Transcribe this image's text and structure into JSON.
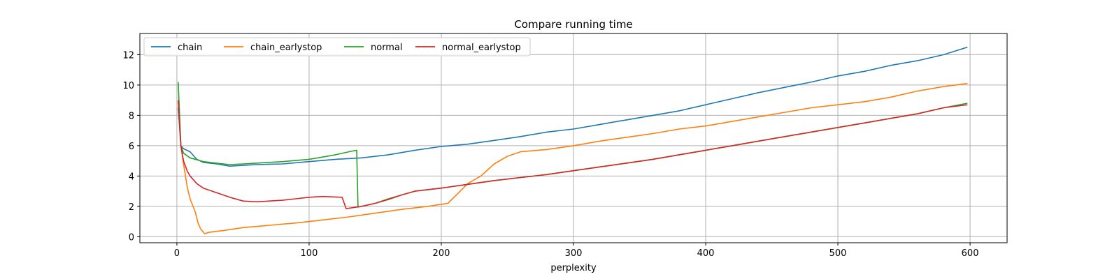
{
  "chart_data": {
    "type": "line",
    "title": "Compare running time",
    "xlabel": "perplexity",
    "ylabel": "",
    "xlim": [
      -28,
      628
    ],
    "ylim": [
      -0.4,
      13.4
    ],
    "xticks": [
      0,
      100,
      200,
      300,
      400,
      500,
      600
    ],
    "yticks": [
      0,
      2,
      4,
      6,
      8,
      10,
      12
    ],
    "grid": true,
    "legend": "top-left",
    "legend_layout": "horizontal",
    "series": [
      {
        "name": "chain",
        "color": "#1f77b4",
        "points": [
          [
            1,
            8.5
          ],
          [
            3,
            6.0
          ],
          [
            5,
            5.8
          ],
          [
            10,
            5.6
          ],
          [
            15,
            5.1
          ],
          [
            20,
            4.9
          ],
          [
            30,
            4.8
          ],
          [
            40,
            4.65
          ],
          [
            50,
            4.7
          ],
          [
            60,
            4.75
          ],
          [
            80,
            4.8
          ],
          [
            100,
            4.95
          ],
          [
            120,
            5.1
          ],
          [
            140,
            5.2
          ],
          [
            160,
            5.4
          ],
          [
            180,
            5.7
          ],
          [
            200,
            5.95
          ],
          [
            220,
            6.1
          ],
          [
            240,
            6.35
          ],
          [
            260,
            6.6
          ],
          [
            280,
            6.9
          ],
          [
            300,
            7.1
          ],
          [
            320,
            7.4
          ],
          [
            340,
            7.7
          ],
          [
            360,
            8.0
          ],
          [
            380,
            8.3
          ],
          [
            400,
            8.7
          ],
          [
            420,
            9.1
          ],
          [
            440,
            9.5
          ],
          [
            460,
            9.85
          ],
          [
            480,
            10.2
          ],
          [
            500,
            10.6
          ],
          [
            520,
            10.9
          ],
          [
            540,
            11.3
          ],
          [
            560,
            11.6
          ],
          [
            580,
            12.0
          ],
          [
            598,
            12.5
          ]
        ]
      },
      {
        "name": "chain_earlystop",
        "color": "#ff7f0e",
        "points": [
          [
            1,
            9.0
          ],
          [
            3,
            6.0
          ],
          [
            5,
            4.8
          ],
          [
            8,
            3.2
          ],
          [
            10,
            2.5
          ],
          [
            14,
            1.6
          ],
          [
            16,
            0.9
          ],
          [
            18,
            0.5
          ],
          [
            21,
            0.2
          ],
          [
            25,
            0.3
          ],
          [
            35,
            0.4
          ],
          [
            50,
            0.6
          ],
          [
            70,
            0.75
          ],
          [
            90,
            0.9
          ],
          [
            110,
            1.1
          ],
          [
            130,
            1.3
          ],
          [
            150,
            1.55
          ],
          [
            170,
            1.8
          ],
          [
            190,
            2.0
          ],
          [
            205,
            2.2
          ],
          [
            212,
            2.8
          ],
          [
            220,
            3.5
          ],
          [
            230,
            4.0
          ],
          [
            240,
            4.8
          ],
          [
            250,
            5.3
          ],
          [
            260,
            5.6
          ],
          [
            280,
            5.75
          ],
          [
            300,
            6.0
          ],
          [
            320,
            6.3
          ],
          [
            340,
            6.55
          ],
          [
            360,
            6.8
          ],
          [
            380,
            7.1
          ],
          [
            400,
            7.3
          ],
          [
            420,
            7.6
          ],
          [
            440,
            7.9
          ],
          [
            460,
            8.2
          ],
          [
            480,
            8.5
          ],
          [
            500,
            8.7
          ],
          [
            520,
            8.9
          ],
          [
            540,
            9.2
          ],
          [
            560,
            9.6
          ],
          [
            580,
            9.9
          ],
          [
            598,
            10.1
          ]
        ]
      },
      {
        "name": "normal",
        "color": "#2ca02c",
        "points": [
          [
            1,
            10.2
          ],
          [
            3,
            6.0
          ],
          [
            5,
            5.5
          ],
          [
            10,
            5.2
          ],
          [
            20,
            4.95
          ],
          [
            30,
            4.85
          ],
          [
            40,
            4.75
          ],
          [
            50,
            4.8
          ],
          [
            60,
            4.85
          ],
          [
            80,
            4.95
          ],
          [
            100,
            5.1
          ],
          [
            110,
            5.25
          ],
          [
            120,
            5.4
          ],
          [
            130,
            5.6
          ],
          [
            136,
            5.7
          ],
          [
            137,
            1.95
          ],
          [
            150,
            2.2
          ],
          [
            160,
            2.5
          ],
          [
            170,
            2.75
          ],
          [
            180,
            3.0
          ],
          [
            200,
            3.2
          ],
          [
            220,
            3.45
          ],
          [
            240,
            3.7
          ],
          [
            260,
            3.9
          ],
          [
            280,
            4.1
          ],
          [
            300,
            4.35
          ],
          [
            320,
            4.6
          ],
          [
            340,
            4.85
          ],
          [
            360,
            5.1
          ],
          [
            380,
            5.4
          ],
          [
            400,
            5.7
          ],
          [
            420,
            6.0
          ],
          [
            440,
            6.3
          ],
          [
            460,
            6.6
          ],
          [
            480,
            6.9
          ],
          [
            500,
            7.2
          ],
          [
            520,
            7.5
          ],
          [
            540,
            7.8
          ],
          [
            560,
            8.1
          ],
          [
            580,
            8.5
          ],
          [
            598,
            8.8
          ]
        ]
      },
      {
        "name": "normal_earlystop",
        "color": "#d62728",
        "points": [
          [
            1,
            9.0
          ],
          [
            3,
            6.0
          ],
          [
            5,
            5.0
          ],
          [
            8,
            4.3
          ],
          [
            10,
            4.0
          ],
          [
            15,
            3.5
          ],
          [
            20,
            3.2
          ],
          [
            30,
            2.9
          ],
          [
            40,
            2.6
          ],
          [
            50,
            2.35
          ],
          [
            60,
            2.3
          ],
          [
            70,
            2.35
          ],
          [
            80,
            2.4
          ],
          [
            90,
            2.5
          ],
          [
            100,
            2.6
          ],
          [
            110,
            2.65
          ],
          [
            125,
            2.6
          ],
          [
            128,
            1.85
          ],
          [
            140,
            2.0
          ],
          [
            150,
            2.2
          ],
          [
            160,
            2.45
          ],
          [
            170,
            2.75
          ],
          [
            180,
            3.0
          ],
          [
            200,
            3.2
          ],
          [
            220,
            3.45
          ],
          [
            240,
            3.7
          ],
          [
            260,
            3.9
          ],
          [
            280,
            4.1
          ],
          [
            300,
            4.35
          ],
          [
            320,
            4.6
          ],
          [
            340,
            4.85
          ],
          [
            360,
            5.1
          ],
          [
            380,
            5.4
          ],
          [
            400,
            5.7
          ],
          [
            420,
            6.0
          ],
          [
            440,
            6.3
          ],
          [
            460,
            6.6
          ],
          [
            480,
            6.9
          ],
          [
            500,
            7.2
          ],
          [
            520,
            7.5
          ],
          [
            540,
            7.8
          ],
          [
            560,
            8.1
          ],
          [
            580,
            8.5
          ],
          [
            598,
            8.7
          ]
        ]
      }
    ]
  }
}
